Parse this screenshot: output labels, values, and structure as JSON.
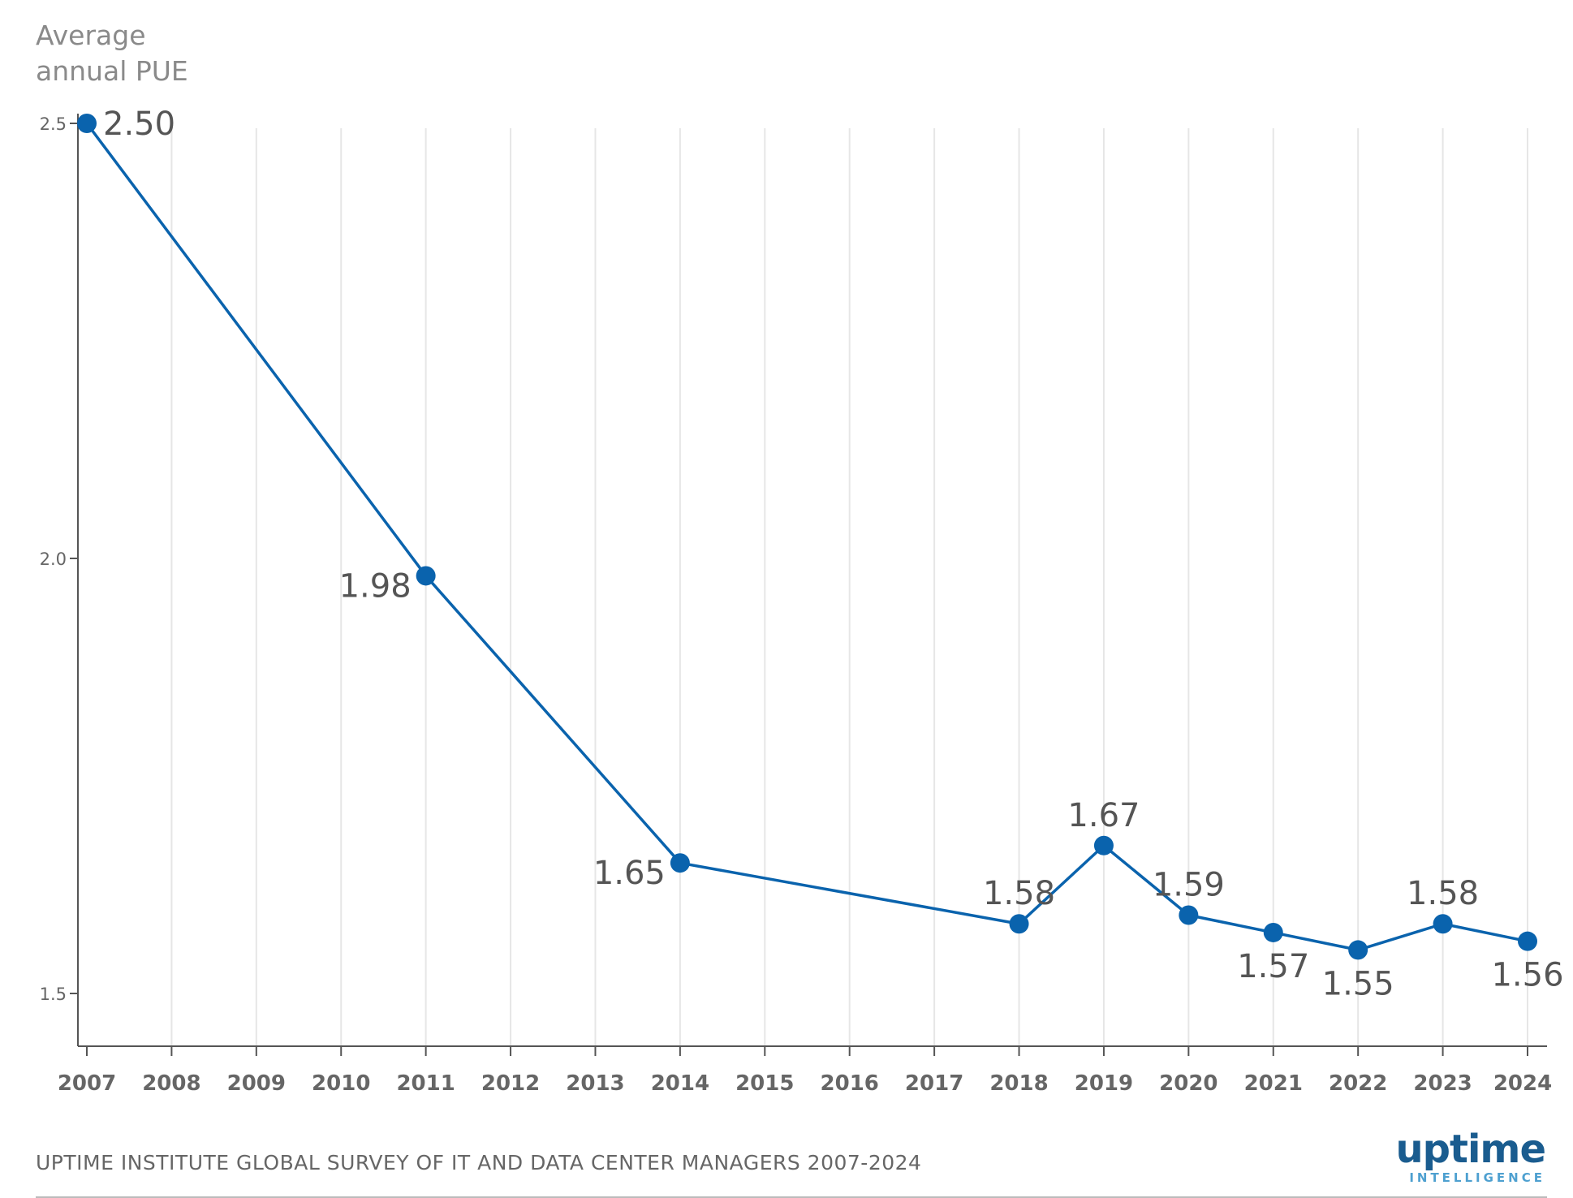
{
  "chart_data": {
    "type": "line",
    "ylabel_lines": [
      "Average",
      "annual PUE"
    ],
    "yticks": [
      2.5,
      2.0,
      1.5
    ],
    "ytick_labels": [
      "2.5",
      "2.0",
      "1.5"
    ],
    "ylim": [
      1.445,
      2.5
    ],
    "categories": [
      "2007",
      "2008",
      "2009",
      "2010",
      "2011",
      "2012",
      "2013",
      "2014",
      "2015",
      "2016",
      "2017",
      "2018",
      "2019",
      "2020",
      "2021",
      "2022",
      "2023",
      "2024"
    ],
    "series": [
      {
        "color": "#0a63ad",
        "points": [
          {
            "x": "2007",
            "y": 2.5,
            "label": "2.50",
            "pos": "right"
          },
          {
            "x": "2011",
            "y": 1.98,
            "label": "1.98",
            "pos": "left"
          },
          {
            "x": "2014",
            "y": 1.65,
            "label": "1.65",
            "pos": "left"
          },
          {
            "x": "2018",
            "y": 1.58,
            "label": "1.58",
            "pos": "above"
          },
          {
            "x": "2019",
            "y": 1.67,
            "label": "1.67",
            "pos": "above"
          },
          {
            "x": "2020",
            "y": 1.59,
            "label": "1.59",
            "pos": "above"
          },
          {
            "x": "2021",
            "y": 1.57,
            "label": "1.57",
            "pos": "below"
          },
          {
            "x": "2022",
            "y": 1.55,
            "label": "1.55",
            "pos": "below"
          },
          {
            "x": "2023",
            "y": 1.58,
            "label": "1.58",
            "pos": "above"
          },
          {
            "x": "2024",
            "y": 1.56,
            "label": "1.56",
            "pos": "below"
          }
        ]
      }
    ],
    "grid": "vertical",
    "gridColor": "#e6e6e6",
    "axisColor": "#555555"
  },
  "footer": {
    "source": "UPTIME INSTITUTE GLOBAL SURVEY OF IT AND DATA CENTER MANAGERS 2007-2024"
  },
  "logo": {
    "word": "uptime",
    "sub": "INTELLIGENCE"
  }
}
